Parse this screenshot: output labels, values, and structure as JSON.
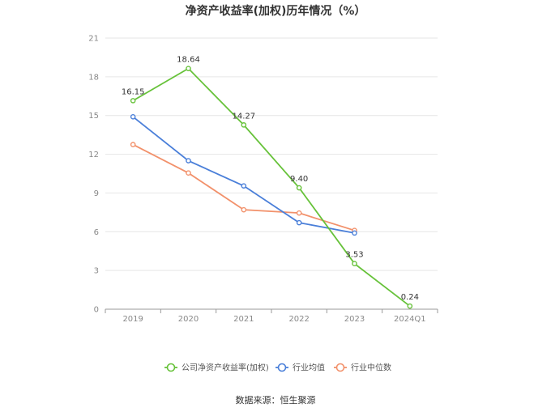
{
  "chart_data": {
    "type": "line",
    "title": "净资产收益率(加权)历年情况（%）",
    "categories": [
      "2019",
      "2020",
      "2021",
      "2022",
      "2023",
      "2024Q1"
    ],
    "ylim": [
      0,
      21
    ],
    "yticks": [
      0,
      3,
      6,
      9,
      12,
      15,
      18,
      21
    ],
    "grid": true,
    "legend_position": "bottom",
    "series": [
      {
        "name": "公司净资产收益率(加权)",
        "color": "#67c23a",
        "values": [
          16.15,
          18.64,
          14.27,
          9.4,
          3.53,
          0.24
        ],
        "labels": [
          "16.15",
          "18.64",
          "14.27",
          "9.40",
          "3.53",
          "0.24"
        ]
      },
      {
        "name": "行业均值",
        "color": "#4a7fd9",
        "values": [
          14.9,
          11.5,
          9.55,
          6.7,
          5.9,
          null
        ]
      },
      {
        "name": "行业中位数",
        "color": "#f2916b",
        "values": [
          12.75,
          10.55,
          7.7,
          7.45,
          6.1,
          null
        ]
      }
    ]
  },
  "source_text": "数据来源：恒生聚源"
}
